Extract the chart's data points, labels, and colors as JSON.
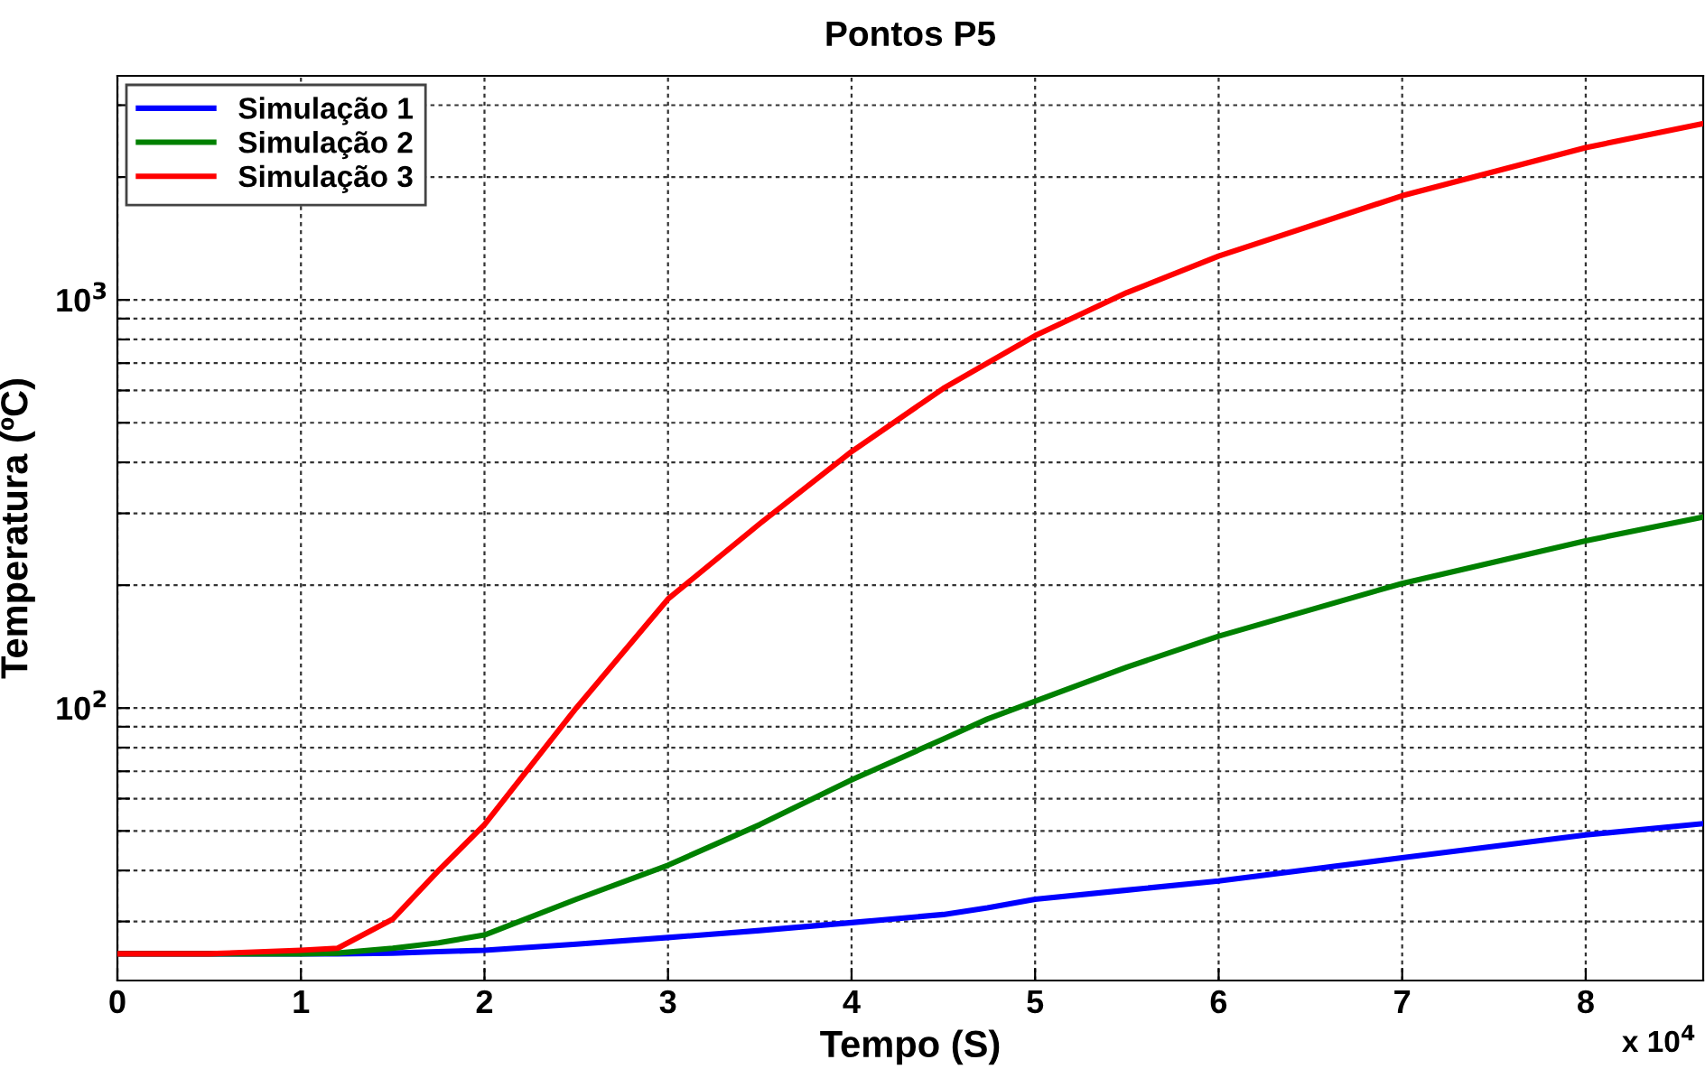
{
  "chart_data": {
    "type": "line",
    "title": "Pontos P5",
    "xlabel": "Tempo (S)",
    "ylabel": "Temperatura (ºC)",
    "annotations": [
      "x 10$^{4}$"
    ],
    "log": "y",
    "grid": true,
    "legend": "top left",
    "line_style": "solid",
    "marker": "none",
    "xlim": [
      0,
      8.64
    ],
    "xticks": [
      0,
      1,
      2,
      3,
      4,
      5,
      6,
      7,
      8
    ],
    "ylim": [
      21.5,
      3540
    ],
    "yticks": [
      {
        "value": 30,
        "label": null
      },
      {
        "value": 40,
        "label": null
      },
      {
        "value": 50,
        "label": null
      },
      {
        "value": 60,
        "label": null
      },
      {
        "value": 70,
        "label": null
      },
      {
        "value": 80,
        "label": null
      },
      {
        "value": 90,
        "label": null
      },
      {
        "value": 100,
        "label": "10$^{2}$"
      },
      {
        "value": 200,
        "label": null
      },
      {
        "value": 300,
        "label": null
      },
      {
        "value": 400,
        "label": null
      },
      {
        "value": 500,
        "label": null
      },
      {
        "value": 600,
        "label": null
      },
      {
        "value": 700,
        "label": null
      },
      {
        "value": 800,
        "label": null
      },
      {
        "value": 900,
        "label": null
      },
      {
        "value": 1000,
        "label": "10$^{3}$"
      },
      {
        "value": 2000,
        "label": null
      },
      {
        "value": 3000,
        "label": null
      }
    ],
    "x": [
      0,
      0.5,
      1,
      1.2,
      1.5,
      1.75,
      2,
      2.5,
      3,
      3.5,
      4,
      4.5,
      4.74,
      5,
      5.5,
      6,
      7,
      8,
      8.64
    ],
    "series": [
      {
        "name": "Simulação 1",
        "color": "#0000ff",
        "values": [
          25,
          25,
          25,
          25,
          25.1,
          25.3,
          25.5,
          26.4,
          27.4,
          28.5,
          29.8,
          31.2,
          32.4,
          34,
          35.8,
          37.7,
          43,
          48.9,
          52.1
        ]
      },
      {
        "name": "Simulação 2",
        "color": "#008000",
        "values": [
          25,
          25,
          25,
          25.1,
          25.8,
          26.6,
          27.8,
          34,
          41.2,
          51.8,
          66.7,
          84,
          94,
          104,
          126,
          150,
          202,
          257,
          294
        ]
      },
      {
        "name": "Simulação 3",
        "color": "#ff0000",
        "values": [
          25,
          25,
          25.5,
          25.8,
          30.4,
          40,
          51.8,
          100,
          185,
          283,
          425,
          607,
          700,
          817,
          1042,
          1280,
          1800,
          2362,
          2705
        ]
      }
    ]
  }
}
